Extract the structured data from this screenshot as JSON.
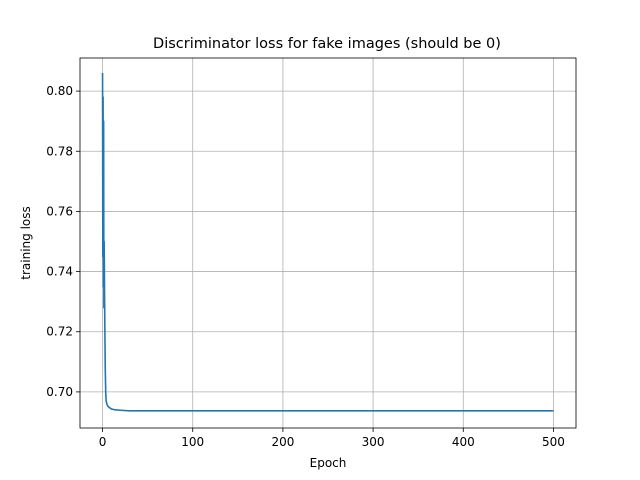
{
  "chart_data": {
    "type": "line",
    "title": "Discriminator loss for fake images (should be 0)",
    "xlabel": "Epoch",
    "ylabel": "training loss",
    "xlim": [
      -25,
      525
    ],
    "ylim": [
      0.688,
      0.811
    ],
    "xticks": [
      0,
      100,
      200,
      300,
      400,
      500
    ],
    "yticks": [
      0.7,
      0.72,
      0.74,
      0.76,
      0.78,
      0.8
    ],
    "ytick_labels": [
      "0.70",
      "0.72",
      "0.74",
      "0.76",
      "0.78",
      "0.80"
    ],
    "grid": true,
    "line_color": "#1f77b4",
    "series": [
      {
        "x": [
          0,
          0.3,
          0.6,
          0.9,
          1.2,
          1.5,
          1.8,
          2.0,
          2.3,
          2.6,
          3.0,
          3.5,
          4,
          5,
          6,
          8,
          10,
          13,
          16,
          20,
          25,
          30,
          40,
          50,
          75,
          100,
          150,
          200,
          300,
          400,
          500
        ],
        "y": [
          0.806,
          0.745,
          0.798,
          0.735,
          0.79,
          0.728,
          0.75,
          0.742,
          0.73,
          0.72,
          0.708,
          0.7,
          0.697,
          0.6958,
          0.6952,
          0.6947,
          0.6943,
          0.6941,
          0.694,
          0.6939,
          0.6938,
          0.6937,
          0.6937,
          0.6937,
          0.6937,
          0.6937,
          0.6937,
          0.6937,
          0.6937,
          0.6937,
          0.6937
        ]
      }
    ]
  }
}
